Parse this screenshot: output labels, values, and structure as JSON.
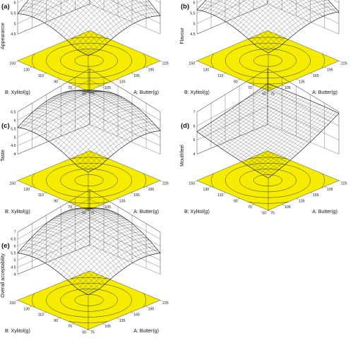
{
  "chart_data": [
    {
      "type": "surface",
      "title": "(a)",
      "zlabel": "Appearance",
      "xlabel": "A: Butter(g)",
      "ylabel": "B: Xylitol(g)",
      "x_ticks": [
        "75",
        "105",
        "135",
        "165",
        "195",
        "225"
      ],
      "y_ticks": [
        "50",
        "70",
        "90",
        "110",
        "130",
        "150"
      ],
      "z_ticks": [
        "4.5",
        "5",
        "5.5",
        "6",
        "6.5"
      ],
      "xlim": [
        75,
        225
      ],
      "ylim": [
        50,
        150
      ],
      "zlim": [
        4.5,
        6.5
      ],
      "z_corners": {
        "x75_y50": 5.1,
        "x225_y50": 5.3,
        "x75_y150": 5.4,
        "x225_y150": 5.4
      },
      "z_peak": 6.55
    },
    {
      "type": "surface",
      "title": "(b)",
      "zlabel": "Flavour",
      "xlabel": "A: Butter(g)",
      "ylabel": "B: Xylitol(g)",
      "x_ticks": [
        "75",
        "105",
        "135",
        "165",
        "195",
        "225"
      ],
      "y_ticks": [
        "50",
        "70",
        "90",
        "110",
        "130",
        "150"
      ],
      "z_ticks": [
        "4.5",
        "5",
        "5.5",
        "6",
        "6.5"
      ],
      "xlim": [
        75,
        225
      ],
      "ylim": [
        50,
        150
      ],
      "zlim": [
        4.5,
        6.5
      ],
      "z_corners": {
        "x75_y50": 5.3,
        "x225_y50": 5.5,
        "x75_y150": 5.6,
        "x225_y150": 5.3
      },
      "z_peak": 6.45
    },
    {
      "type": "surface",
      "title": "(c)",
      "zlabel": "Taste",
      "xlabel": "A: Butter(g)",
      "ylabel": "B: Xylitol(g)",
      "x_ticks": [
        "75",
        "105",
        "135",
        "165",
        "195",
        "225"
      ],
      "y_ticks": [
        "50",
        "70",
        "90",
        "110",
        "130",
        "150"
      ],
      "z_ticks": [
        "4",
        "4.5",
        "5",
        "5.5",
        "6",
        "6.5"
      ],
      "xlim": [
        75,
        225
      ],
      "ylim": [
        50,
        150
      ],
      "zlim": [
        4,
        6.5
      ],
      "z_corners": {
        "x75_y50": 5.0,
        "x225_y50": 5.3,
        "x75_y150": 5.5,
        "x225_y150": 4.8
      },
      "z_peak": 6.55
    },
    {
      "type": "surface",
      "title": "(d)",
      "zlabel": "Mouthfeel",
      "xlabel": "A: Butter(g)",
      "ylabel": "B: Xylitol(g)",
      "x_ticks": [
        "75",
        "105",
        "135",
        "165",
        "195",
        "225"
      ],
      "y_ticks": [
        "50",
        "70",
        "90",
        "110",
        "130",
        "150"
      ],
      "z_ticks": [
        "4",
        "5",
        "6",
        "7"
      ],
      "xlim": [
        75,
        225
      ],
      "ylim": [
        50,
        150
      ],
      "zlim": [
        4,
        7
      ],
      "z_corners": {
        "x75_y50": 4.6,
        "x225_y50": 6.9,
        "x75_y150": 5.6,
        "x225_y150": 6.2
      },
      "z_peak": null
    },
    {
      "type": "surface",
      "title": "(e)",
      "zlabel": "Overall acceptability",
      "xlabel": "A: Butter(g)",
      "ylabel": "B: Xylitol(g)",
      "x_ticks": [
        "75",
        "105",
        "135",
        "165",
        "195",
        "225"
      ],
      "y_ticks": [
        "50",
        "70",
        "90",
        "110",
        "130",
        "150"
      ],
      "z_ticks": [
        "4",
        "4.5",
        "5",
        "5.5",
        "6",
        "6.5",
        "7"
      ],
      "xlim": [
        75,
        225
      ],
      "ylim": [
        50,
        150
      ],
      "zlim": [
        4,
        7
      ],
      "z_corners": {
        "x75_y50": 4.9,
        "x225_y50": 5.4,
        "x75_y150": 5.4,
        "x225_y150": 5.2
      },
      "z_peak": 6.95
    }
  ],
  "colors": {
    "contour_fill": "#f5ec00",
    "mesh": "#333333",
    "wall": "#444444"
  }
}
